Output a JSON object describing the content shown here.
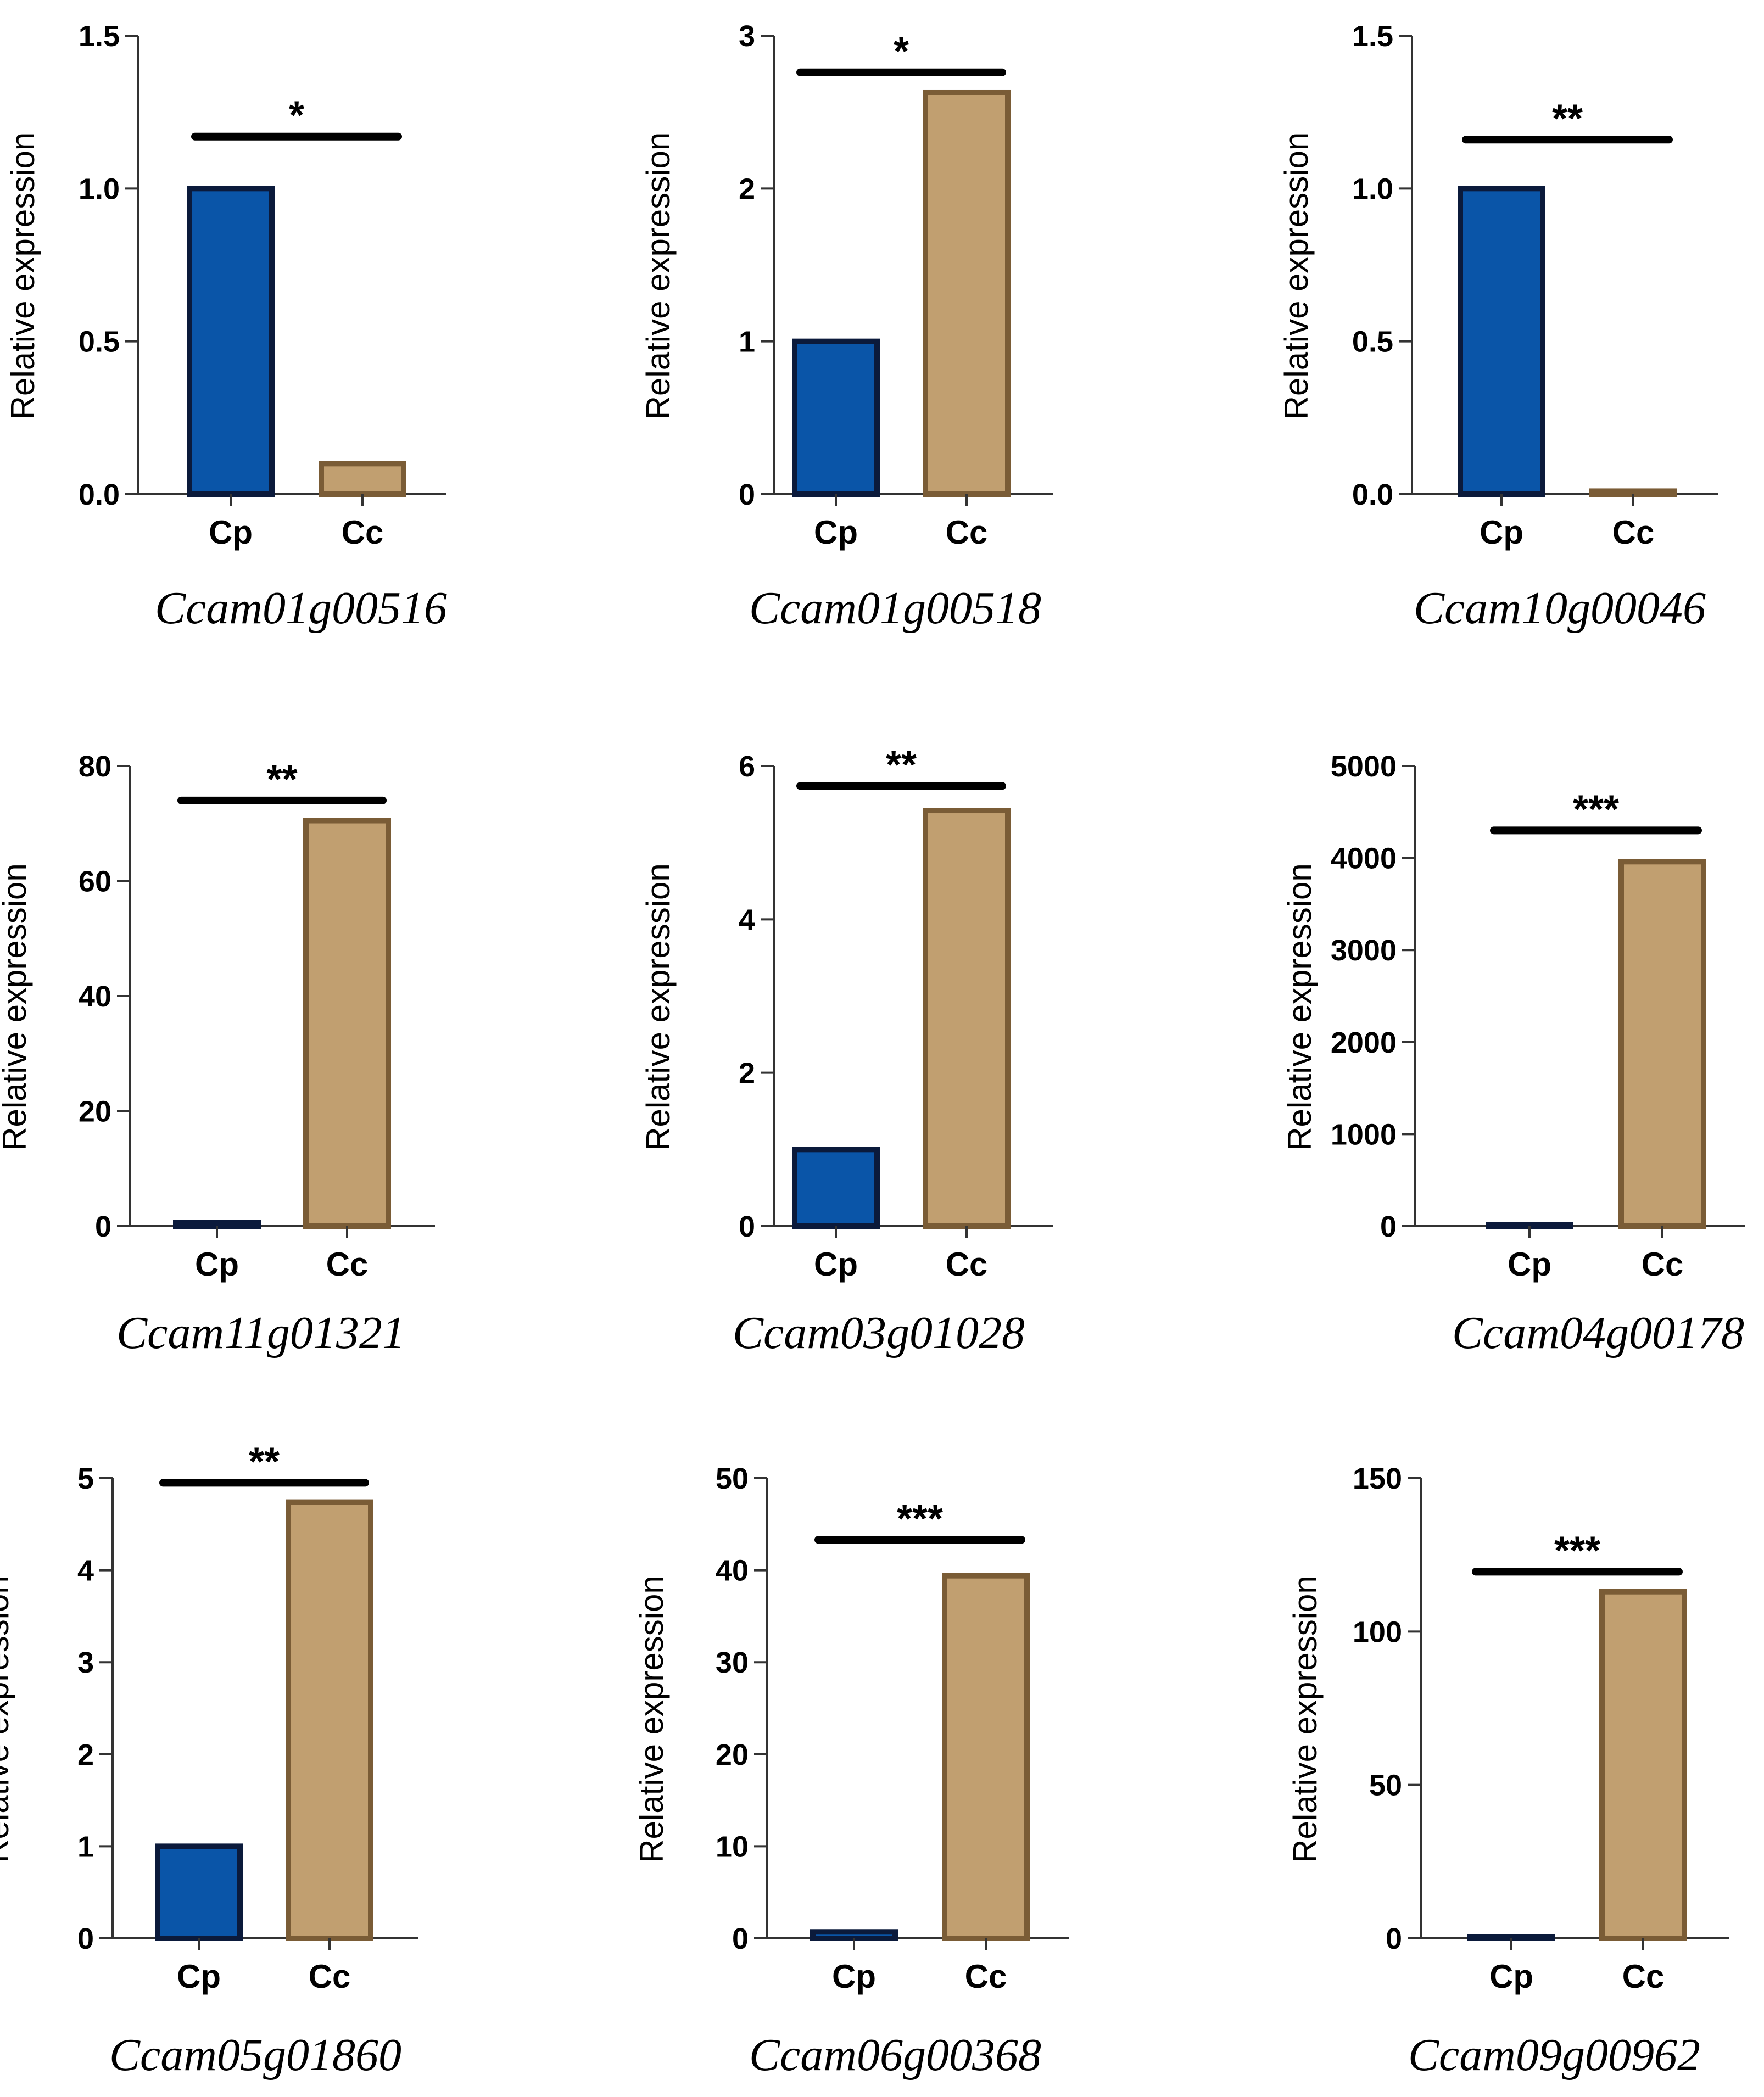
{
  "colors": {
    "cp_fill": "#0a55a8",
    "cp_stroke": "#0b1a3b",
    "cc_fill": "#c19f70",
    "cc_stroke": "#7a5c36",
    "axis": "#333333"
  },
  "chart_data": [
    {
      "type": "bar",
      "title": "Ccam01g00516",
      "ylabel": "Relative expression",
      "categories": [
        "Cp",
        "Cc"
      ],
      "values": [
        1.0,
        0.1
      ],
      "ylim": [
        0,
        1.5
      ],
      "yticks": [
        0,
        0.5,
        1.0,
        1.5
      ],
      "ytick_labels": [
        "0.0",
        "0.5",
        "1.0",
        "1.5"
      ],
      "significance": "*",
      "sig_y": 1.17
    },
    {
      "type": "bar",
      "title": "Ccam01g00518",
      "ylabel": "Relative expression",
      "categories": [
        "Cp",
        "Cc"
      ],
      "values": [
        1.0,
        2.63
      ],
      "ylim": [
        0,
        3
      ],
      "yticks": [
        0,
        1,
        2,
        3
      ],
      "ytick_labels": [
        "0",
        "1",
        "2",
        "3"
      ],
      "significance": "*",
      "sig_y": 2.76
    },
    {
      "type": "bar",
      "title": "Ccam10g00046",
      "ylabel": "Relative expression",
      "categories": [
        "Cp",
        "Cc"
      ],
      "values": [
        1.0,
        0.01
      ],
      "ylim": [
        0,
        1.5
      ],
      "yticks": [
        0,
        0.5,
        1.0,
        1.5
      ],
      "ytick_labels": [
        "0.0",
        "0.5",
        "1.0",
        "1.5"
      ],
      "significance": "**",
      "sig_y": 1.16
    },
    {
      "type": "bar",
      "title": "Ccam11g01321",
      "ylabel": "Relative expression",
      "categories": [
        "Cp",
        "Cc"
      ],
      "values": [
        0.6,
        70.5
      ],
      "ylim": [
        0,
        80
      ],
      "yticks": [
        0,
        20,
        40,
        60,
        80
      ],
      "ytick_labels": [
        "0",
        "20",
        "40",
        "60",
        "80"
      ],
      "significance": "**",
      "sig_y": 74
    },
    {
      "type": "bar",
      "title": "Ccam03g01028",
      "ylabel": "Relative expression",
      "categories": [
        "Cp",
        "Cc"
      ],
      "values": [
        1.0,
        5.42
      ],
      "ylim": [
        0,
        6
      ],
      "yticks": [
        0,
        2,
        4,
        6
      ],
      "ytick_labels": [
        "0",
        "2",
        "4",
        "6"
      ],
      "significance": "**",
      "sig_y": 5.74
    },
    {
      "type": "bar",
      "title": "Ccam04g00178",
      "ylabel": "Relative expression",
      "categories": [
        "Cp",
        "Cc"
      ],
      "values": [
        1.0,
        3960
      ],
      "ylim": [
        0,
        5000
      ],
      "yticks": [
        0,
        1000,
        2000,
        3000,
        4000,
        5000
      ],
      "ytick_labels": [
        "0",
        "1000",
        "2000",
        "3000",
        "4000",
        "5000"
      ],
      "significance": "***",
      "sig_y": 4300
    },
    {
      "type": "bar",
      "title": "Ccam05g01860",
      "ylabel": "Relative expression",
      "categories": [
        "Cp",
        "Cc"
      ],
      "values": [
        1.0,
        4.74
      ],
      "ylim": [
        0,
        5
      ],
      "yticks": [
        0,
        1,
        2,
        3,
        4,
        5
      ],
      "ytick_labels": [
        "0",
        "1",
        "2",
        "3",
        "4",
        "5"
      ],
      "significance": "**",
      "sig_y": 4.95
    },
    {
      "type": "bar",
      "title": "Ccam06g00368",
      "ylabel": "Relative expression",
      "categories": [
        "Cp",
        "Cc"
      ],
      "values": [
        0.7,
        39.4
      ],
      "ylim": [
        0,
        50
      ],
      "yticks": [
        0,
        10,
        20,
        30,
        40,
        50
      ],
      "ytick_labels": [
        "0",
        "10",
        "20",
        "30",
        "40",
        "50"
      ],
      "significance": "***",
      "sig_y": 43.3
    },
    {
      "type": "bar",
      "title": "Ccam09g00962",
      "ylabel": "Relative expression",
      "categories": [
        "Cp",
        "Cc"
      ],
      "values": [
        0.5,
        113
      ],
      "ylim": [
        0,
        150
      ],
      "yticks": [
        0,
        50,
        100,
        150
      ],
      "ytick_labels": [
        "0",
        "50",
        "100",
        "150"
      ],
      "significance": "***",
      "sig_y": 119.5
    }
  ]
}
